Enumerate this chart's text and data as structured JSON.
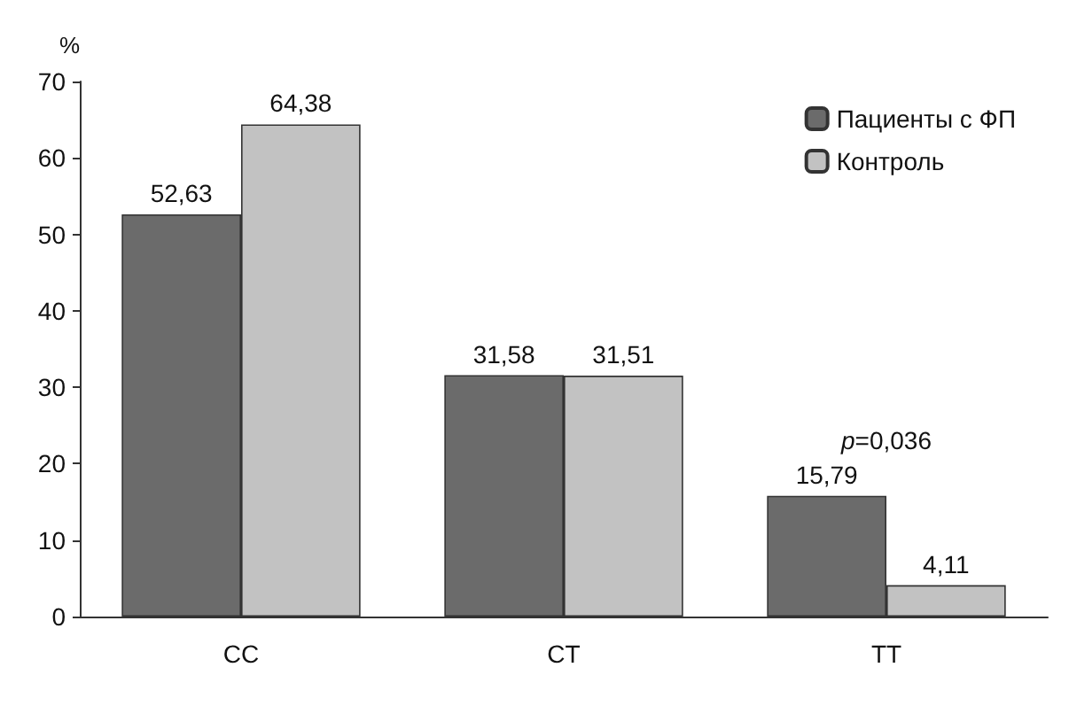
{
  "chart_data": {
    "type": "bar",
    "ylabel": "%",
    "categories": [
      "CC",
      "CT",
      "TT"
    ],
    "series": [
      {
        "name": "Пациенты с ФП",
        "color": "#6b6b6b",
        "values": [
          52.63,
          31.58,
          15.79
        ],
        "value_labels": [
          "52,63",
          "31,58",
          "15,79"
        ]
      },
      {
        "name": "Контроль",
        "color": "#c2c2c2",
        "values": [
          64.38,
          31.51,
          4.11
        ],
        "value_labels": [
          "64,38",
          "31,51",
          "4,11"
        ]
      }
    ],
    "ylim": [
      0,
      70
    ],
    "yticks": [
      0,
      10,
      20,
      30,
      40,
      50,
      60,
      70
    ],
    "grid": false,
    "legend": "top right",
    "annotations": [
      "p=0,036"
    ]
  }
}
